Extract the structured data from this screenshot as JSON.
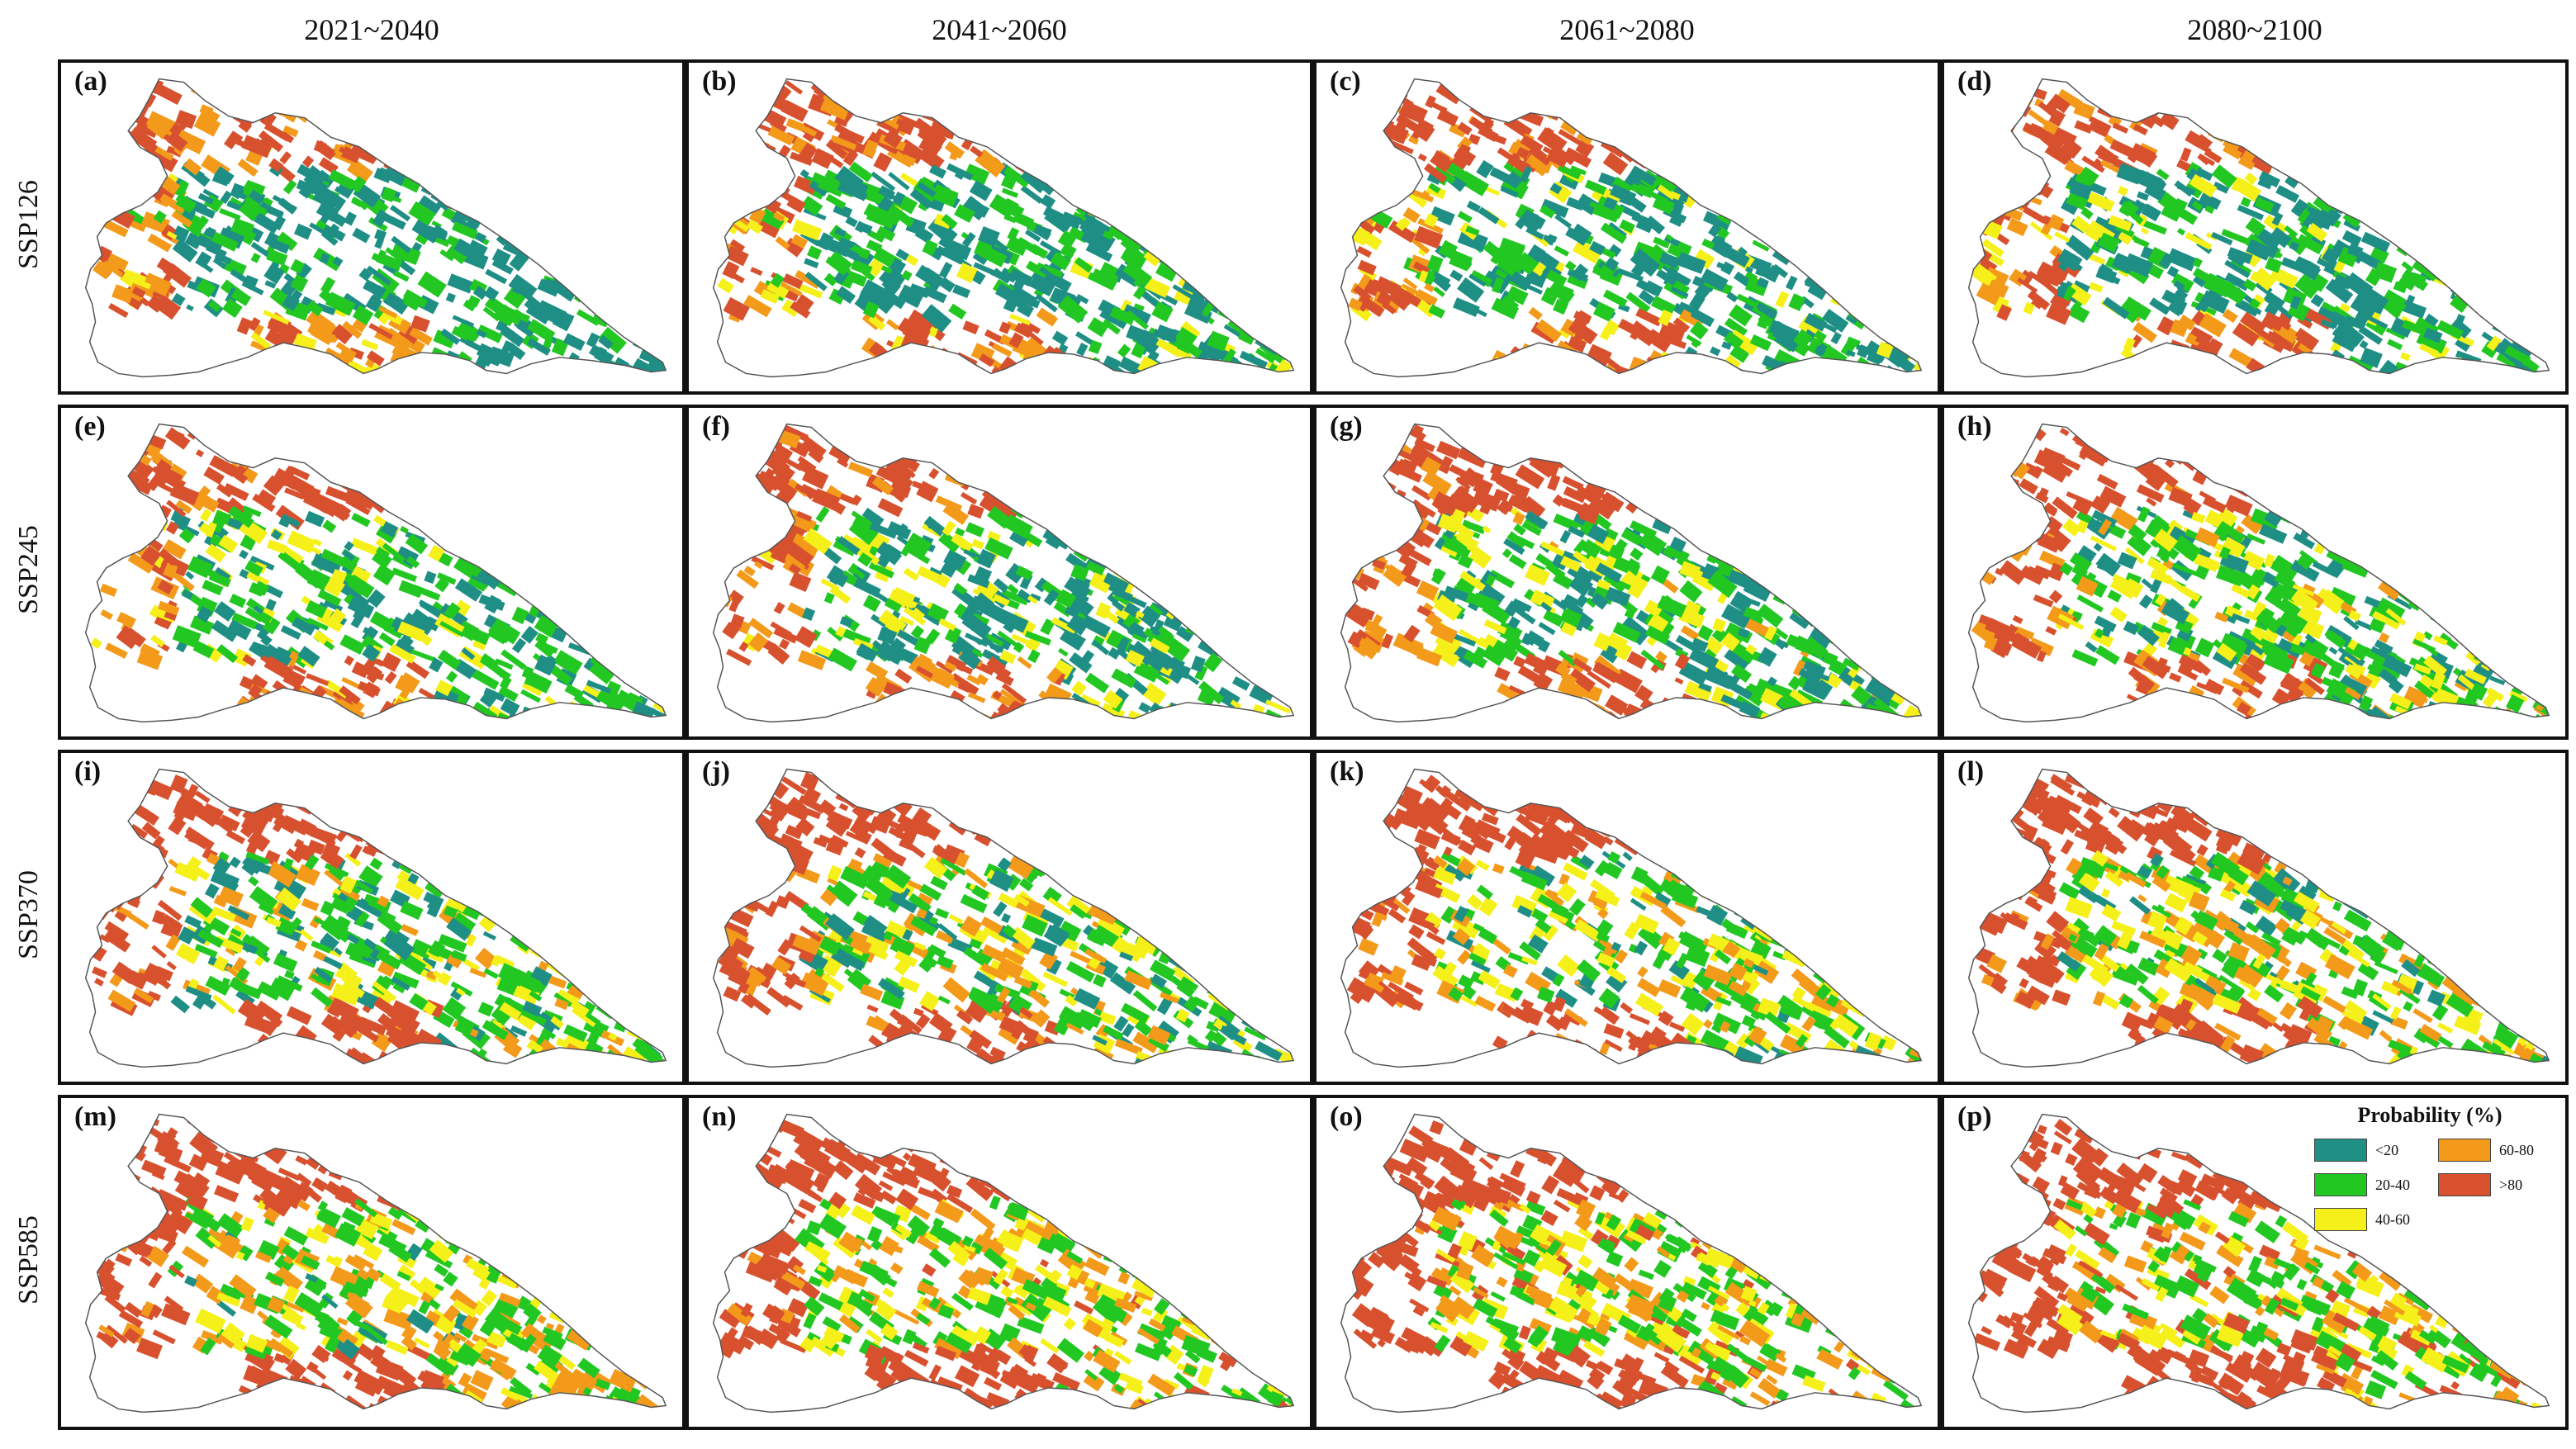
{
  "periods": [
    "2021~2040",
    "2041~2060",
    "2061~2080",
    "2080~2100"
  ],
  "scenarios": [
    "SSP126",
    "SSP245",
    "SSP370",
    "SSP585"
  ],
  "panel_labels": [
    [
      "(a)",
      "(b)",
      "(c)",
      "(d)"
    ],
    [
      "(e)",
      "(f)",
      "(g)",
      "(h)"
    ],
    [
      "(i)",
      "(j)",
      "(k)",
      "(l)"
    ],
    [
      "(m)",
      "(n)",
      "(o)",
      "(p)"
    ]
  ],
  "legend": {
    "title": "Probability (%)",
    "items": [
      {
        "label": "<20",
        "color": "#1f8f85"
      },
      {
        "label": "60-80",
        "color": "#f39a1b"
      },
      {
        "label": "20-40",
        "color": "#22c722"
      },
      {
        "label": ">80",
        "color": "#d8512f"
      },
      {
        "label": "40-60",
        "color": "#f5f01a"
      }
    ]
  },
  "class_colors": {
    "lt20": "#1f8f85",
    "c20_40": "#22c722",
    "c40_60": "#f5f01a",
    "c60_80": "#f39a1b",
    "gt80": "#d8512f"
  }
}
